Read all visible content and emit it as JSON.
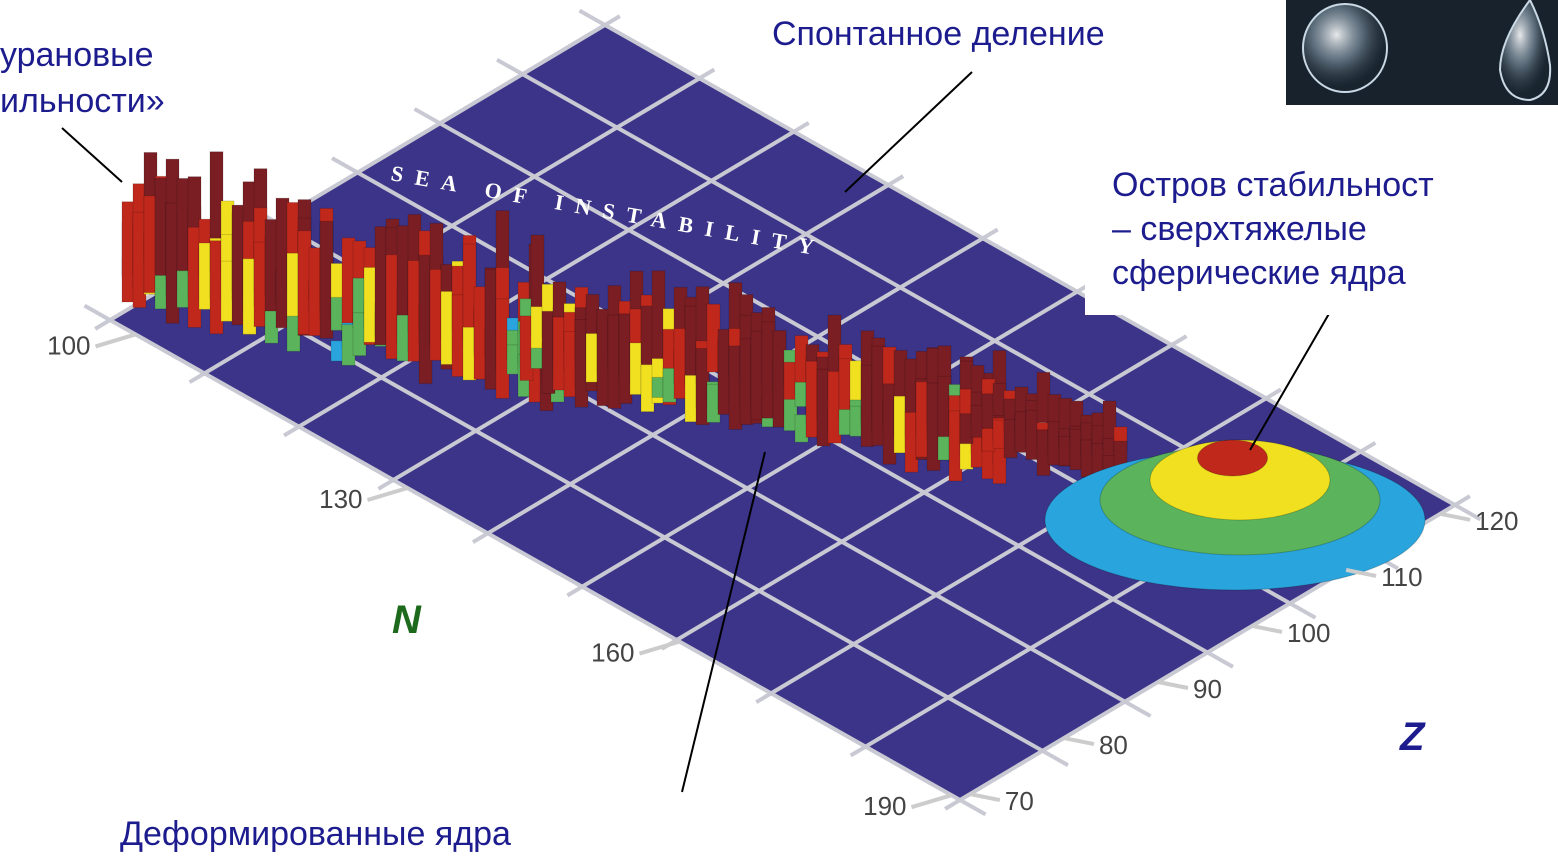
{
  "labels": {
    "uranium_line1": "урановые",
    "uranium_line2": "ильности»",
    "fission": "Спонтанное деление",
    "island_line1": "Остров стабильност",
    "island_line2": "– сверхтяжелые",
    "island_line3": "сферические ядра",
    "deformed": "Деформированные ядра",
    "sea": "SEA OF INSTABILITY"
  },
  "axes": {
    "n_name": "N",
    "z_name": "Z",
    "n_ticks": [
      100,
      130,
      160,
      190
    ],
    "z_ticks": [
      70,
      80,
      90,
      100,
      110,
      120
    ]
  }
}
